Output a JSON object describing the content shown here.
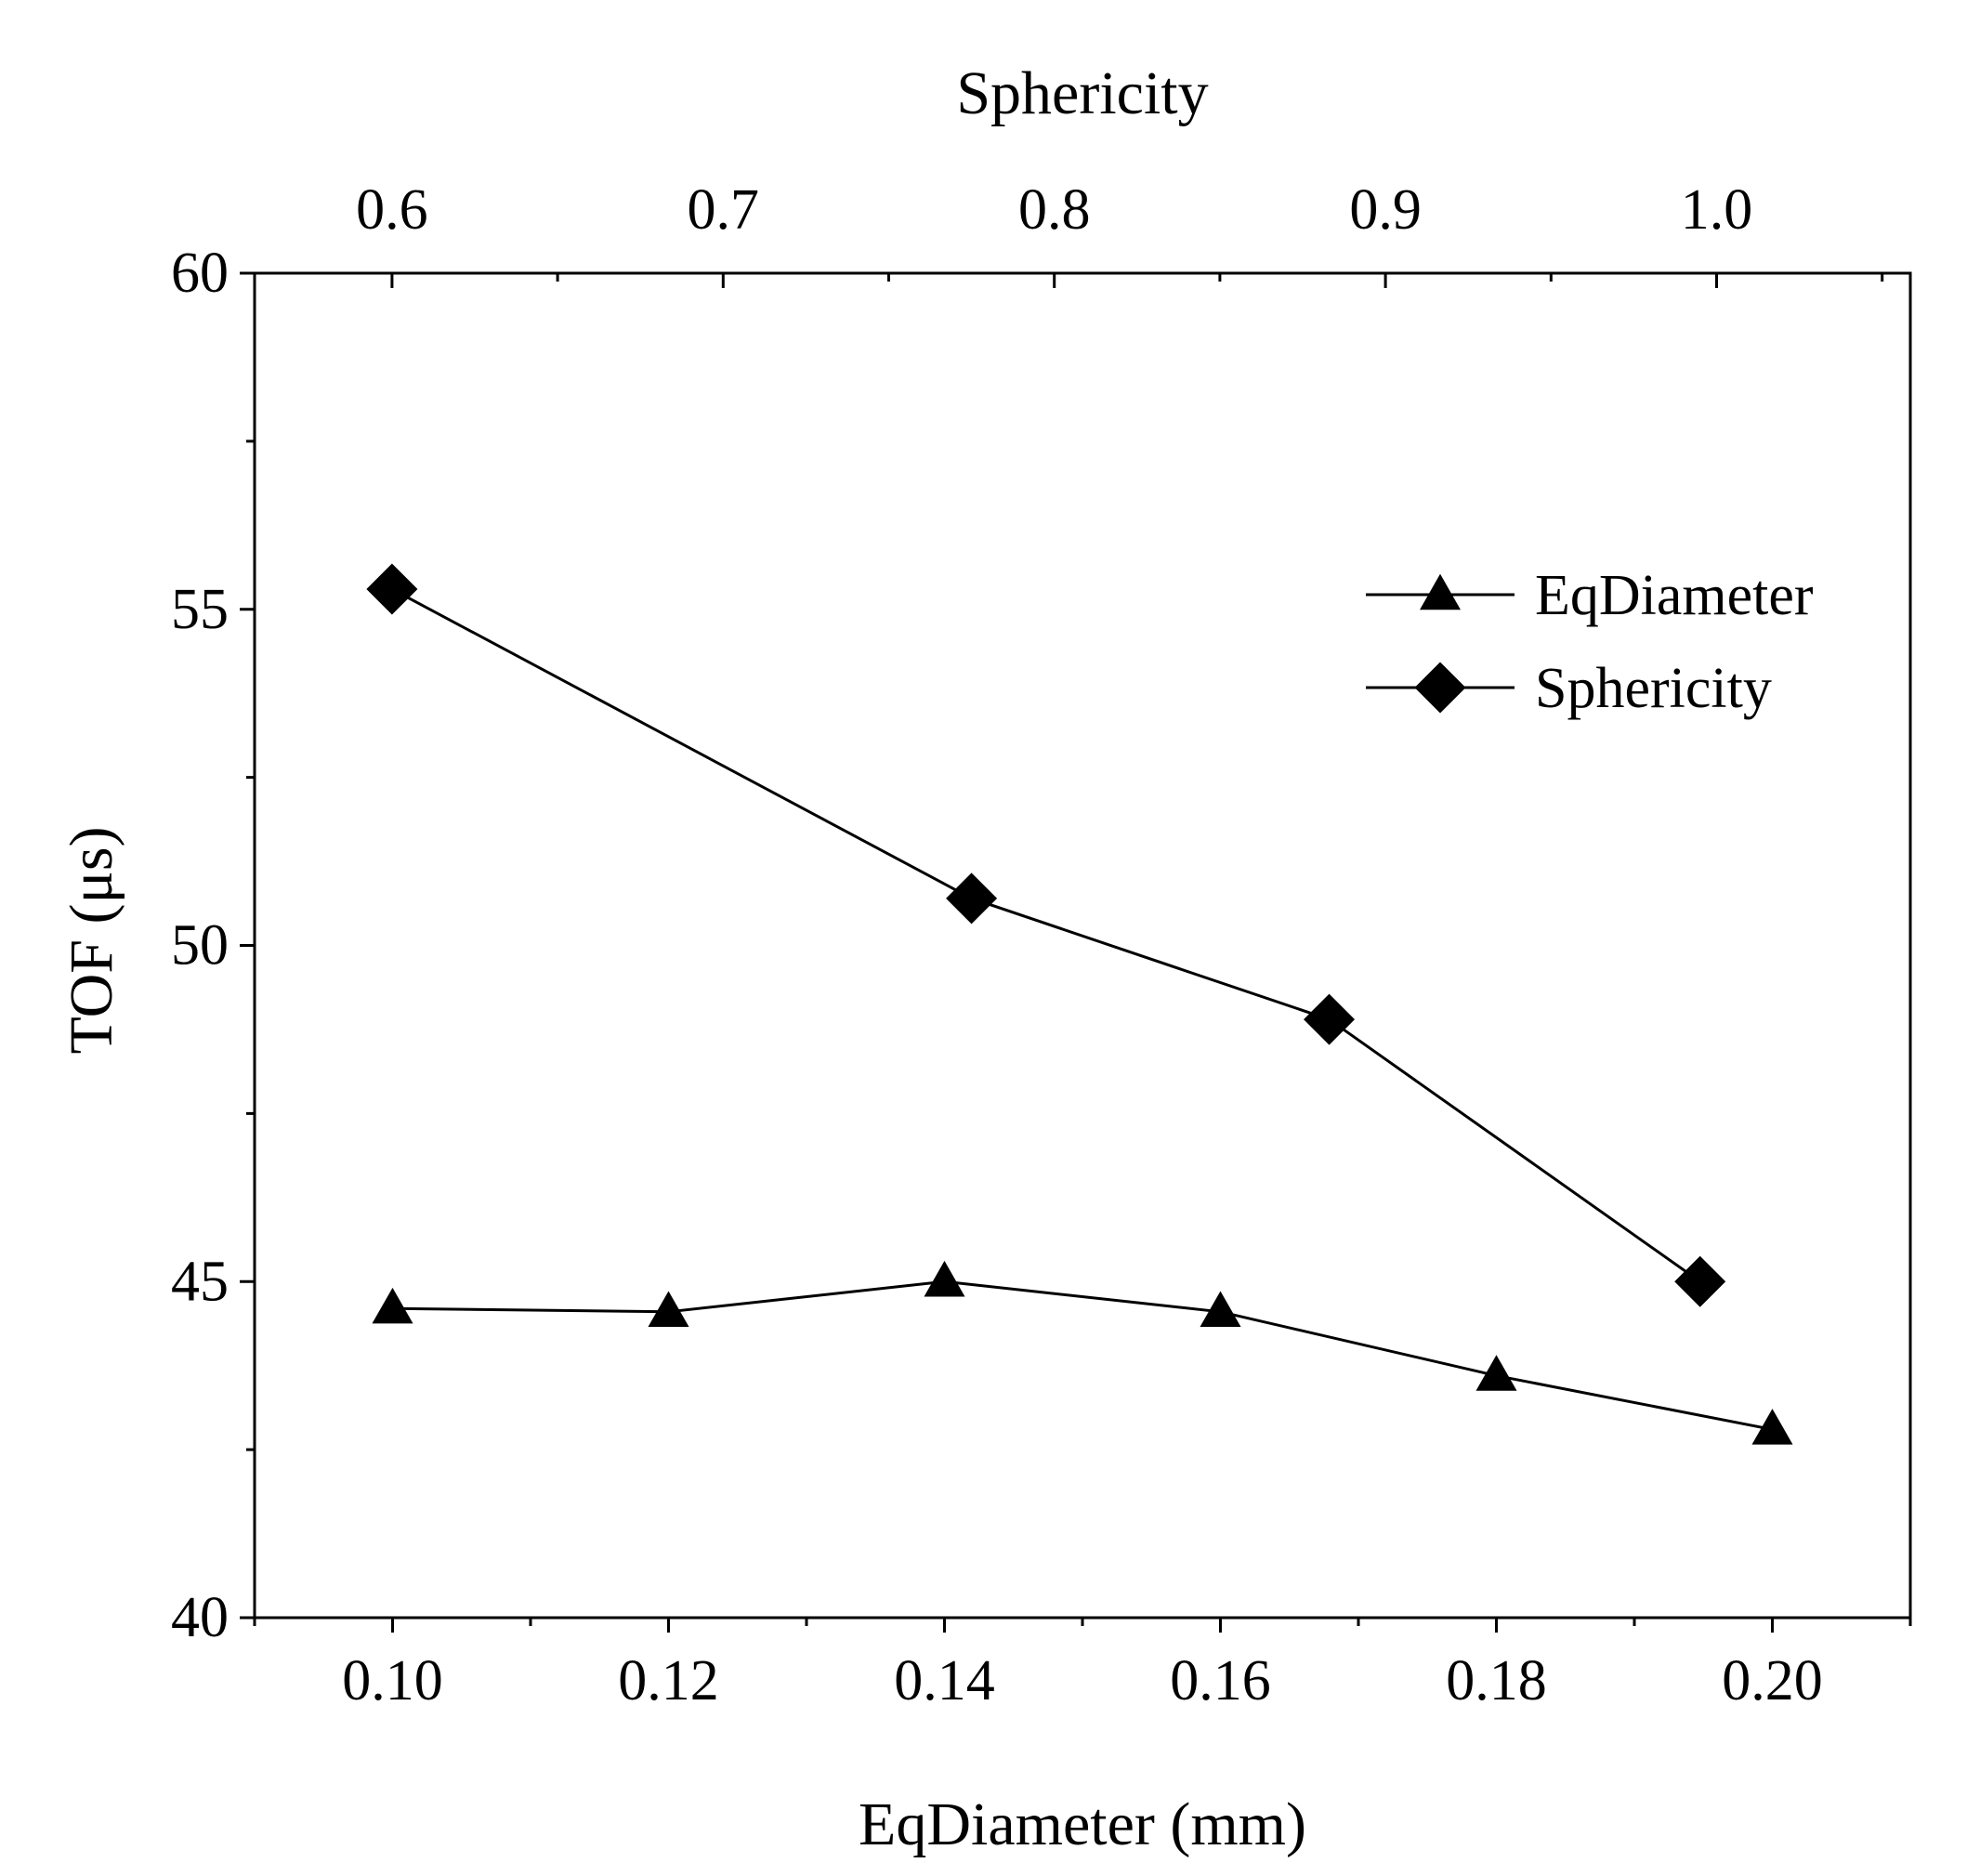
{
  "chart_data": {
    "type": "line",
    "title": "",
    "ylabel": "TOF (μs)",
    "xlabel_bottom": "EqDiameter (mm)",
    "xlabel_top": "Sphericity",
    "ylim": [
      40,
      60
    ],
    "xlim_bottom": [
      0.09,
      0.21
    ],
    "xlim_top": [
      0.5585,
      1.0585
    ],
    "y_ticks": [
      "40",
      "45",
      "50",
      "55",
      "60"
    ],
    "x_bottom_ticks": [
      "0.10",
      "0.12",
      "0.14",
      "0.16",
      "0.18",
      "0.20"
    ],
    "x_top_ticks": [
      "0.6",
      "0.7",
      "0.8",
      "0.9",
      "1.0"
    ],
    "grid": false,
    "legend_position": "upper-right",
    "series": [
      {
        "name": "EqDiameter",
        "axis": "bottom",
        "marker": "triangle",
        "x": [
          0.1,
          0.12,
          0.14,
          0.16,
          0.18,
          0.2
        ],
        "y": [
          44.6,
          44.55,
          45.0,
          44.55,
          43.6,
          42.8
        ]
      },
      {
        "name": "Sphericity",
        "axis": "top",
        "marker": "diamond",
        "x": [
          0.6,
          0.775,
          0.883,
          0.995
        ],
        "y": [
          55.3,
          50.7,
          48.9,
          45.0
        ]
      }
    ]
  }
}
